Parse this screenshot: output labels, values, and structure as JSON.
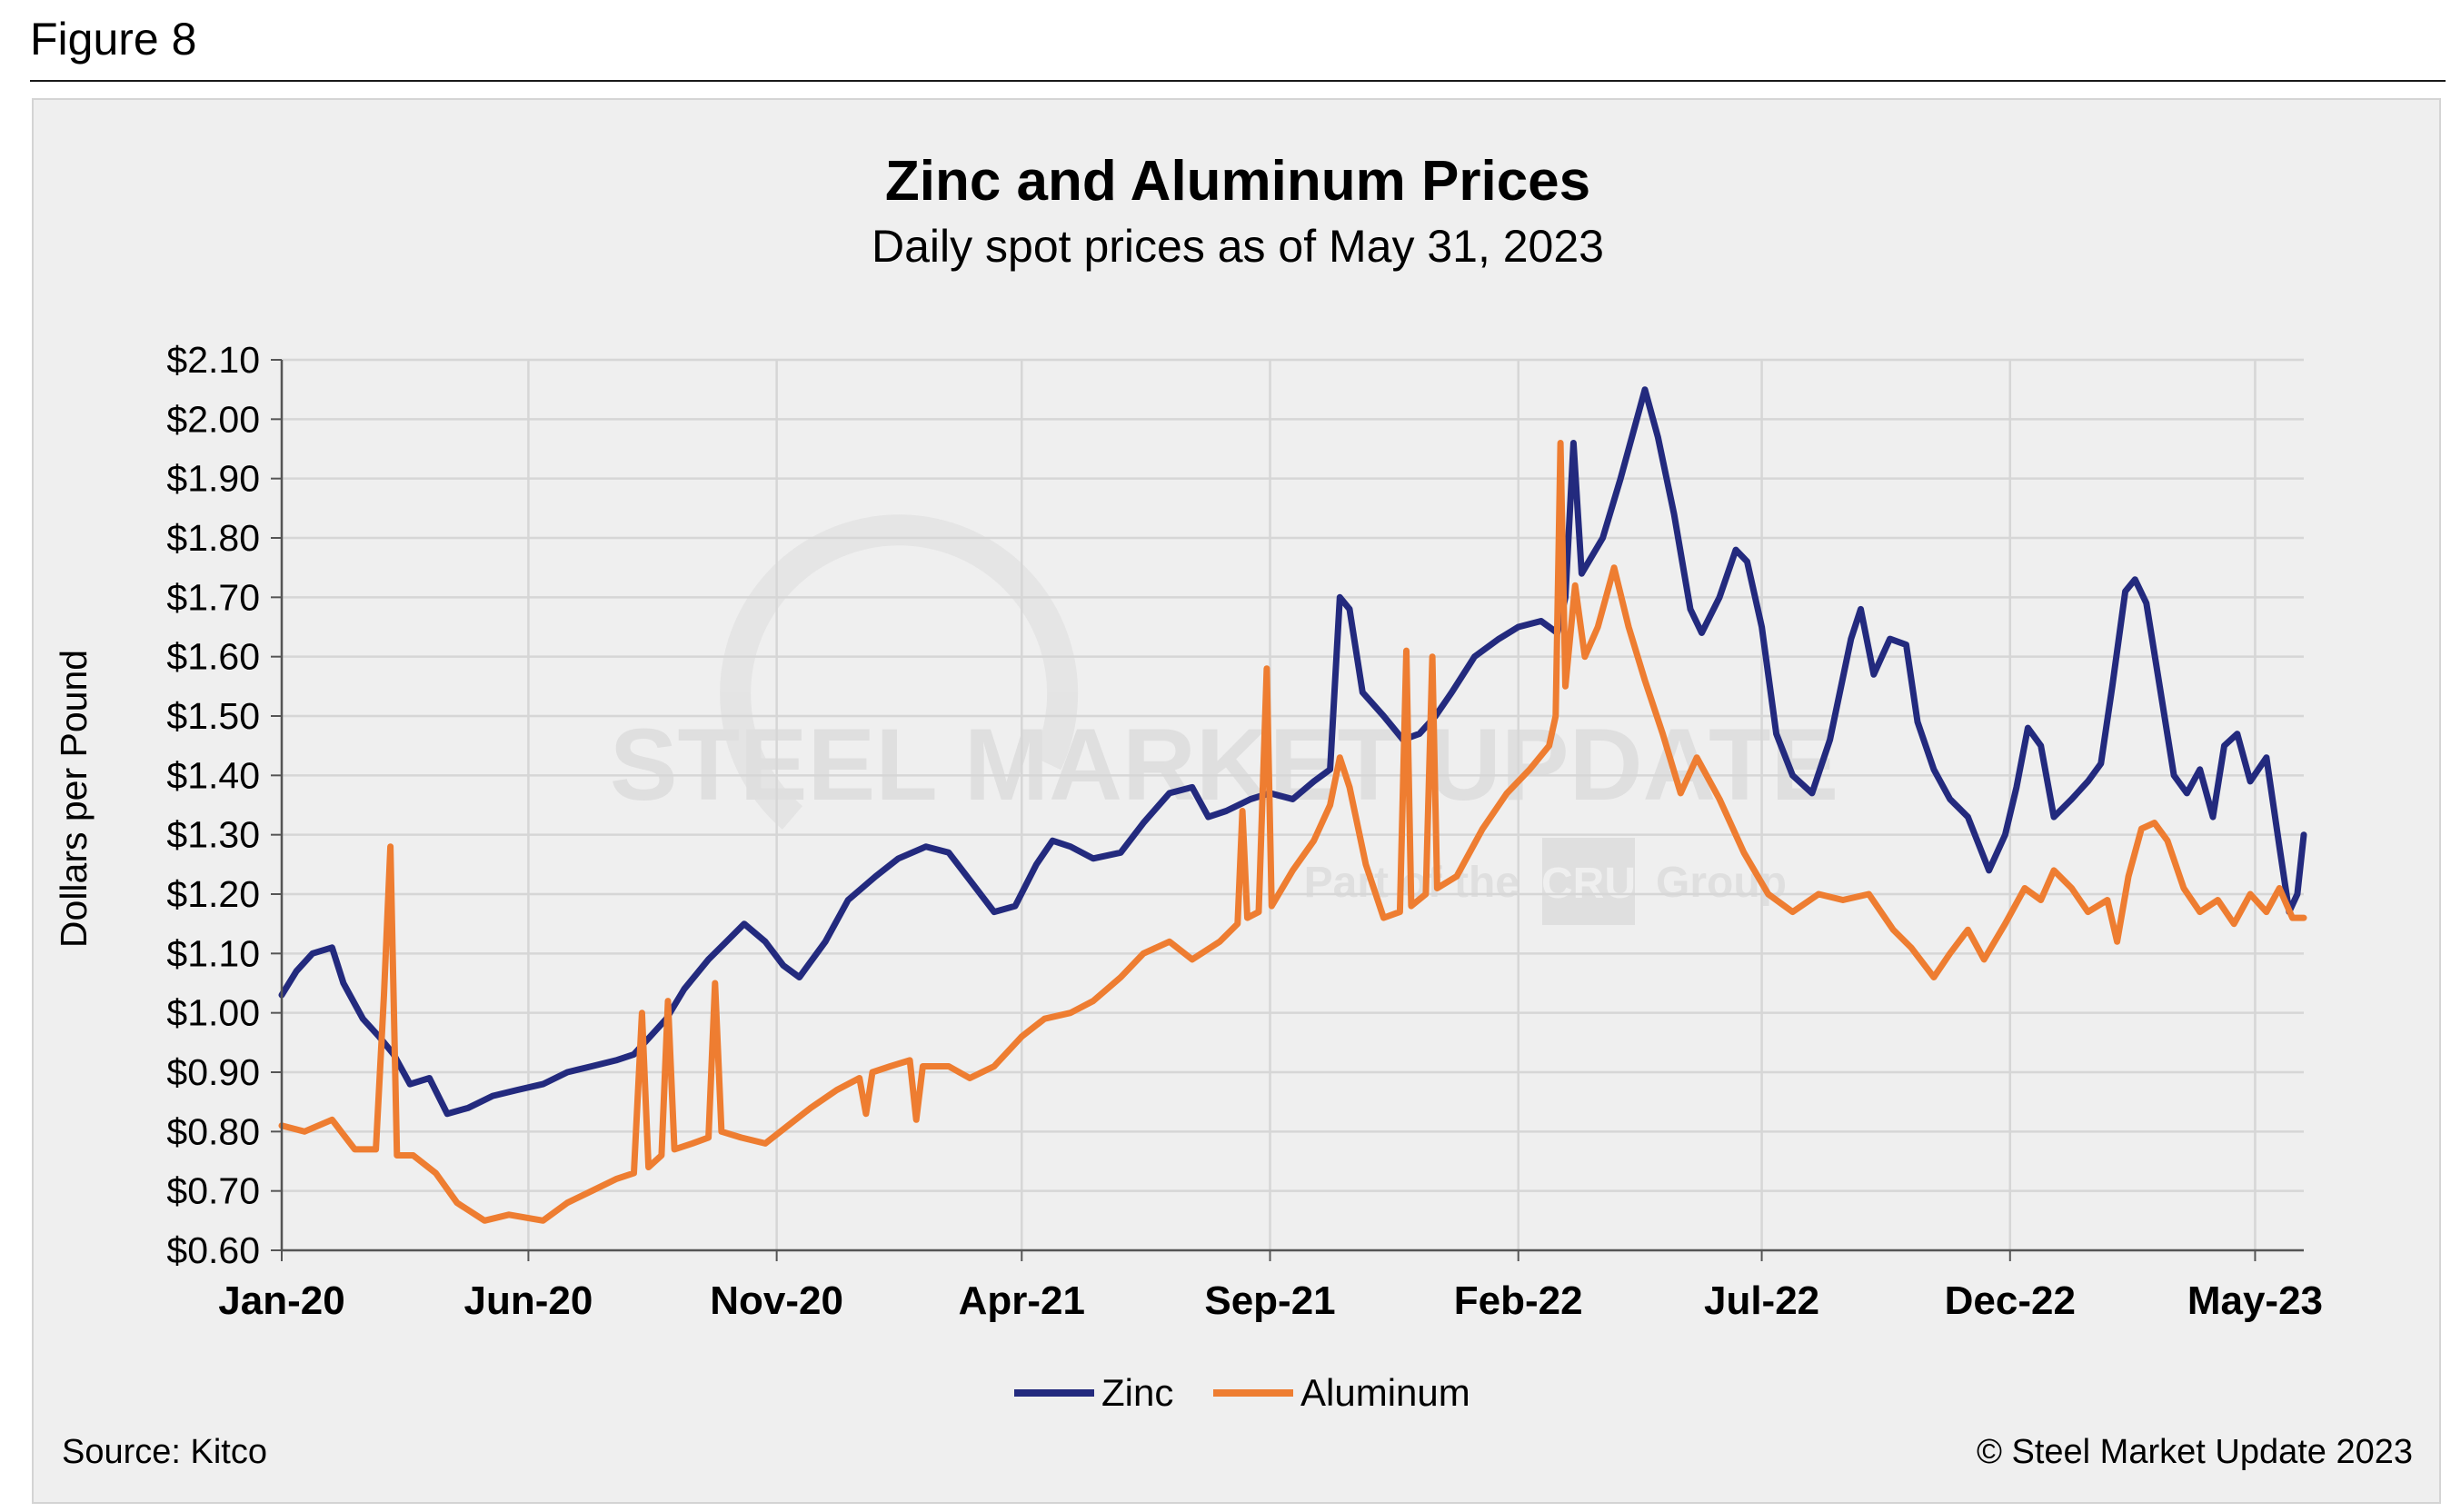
{
  "figure_label": "Figure 8",
  "source": "Source: Kitco",
  "copyright": "© Steel Market Update 2023",
  "watermark": {
    "main": "STEEL MARKET UPDATE",
    "sub_left": "Part of the",
    "sub_logo": "CRU",
    "sub_right": "Group"
  },
  "colors": {
    "zinc": "#232a7e",
    "aluminum": "#ee7d31",
    "grid": "#d6d6d6",
    "panel": "#efefef"
  },
  "chart_data": {
    "type": "line",
    "title": "Zinc and Aluminum Prices",
    "subtitle": "Daily spot prices as of May 31, 2023",
    "ylabel": "Dollars per Pound",
    "xlabel": "",
    "ylim": [
      0.6,
      2.1
    ],
    "xlim": [
      "2020-01-01",
      "2023-05-31"
    ],
    "yticks": [
      0.6,
      0.7,
      0.8,
      0.9,
      1.0,
      1.1,
      1.2,
      1.3,
      1.4,
      1.5,
      1.6,
      1.7,
      1.8,
      1.9,
      2.0,
      2.1
    ],
    "ytick_labels": [
      "$0.60",
      "$0.70",
      "$0.80",
      "$0.90",
      "$1.00",
      "$1.10",
      "$1.20",
      "$1.30",
      "$1.40",
      "$1.50",
      "$1.60",
      "$1.70",
      "$1.80",
      "$1.90",
      "$2.00",
      "$2.10"
    ],
    "xticks": [
      "2020-01-01",
      "2020-06-01",
      "2020-11-01",
      "2021-04-01",
      "2021-09-01",
      "2022-02-01",
      "2022-07-01",
      "2022-12-01",
      "2023-05-01"
    ],
    "xtick_labels": [
      "Jan-20",
      "Jun-20",
      "Nov-20",
      "Apr-21",
      "Sep-21",
      "Feb-22",
      "Jul-22",
      "Dec-22",
      "May-23"
    ],
    "grid": "vertical and horizontal",
    "legend": "bottom-center",
    "series": [
      {
        "name": "Zinc",
        "color": "#232a7e",
        "points": [
          [
            "2020-01-01",
            1.03
          ],
          [
            "2020-01-10",
            1.07
          ],
          [
            "2020-01-20",
            1.1
          ],
          [
            "2020-02-01",
            1.11
          ],
          [
            "2020-02-08",
            1.05
          ],
          [
            "2020-02-20",
            0.99
          ],
          [
            "2020-03-01",
            0.96
          ],
          [
            "2020-03-10",
            0.93
          ],
          [
            "2020-03-20",
            0.88
          ],
          [
            "2020-04-01",
            0.89
          ],
          [
            "2020-04-12",
            0.83
          ],
          [
            "2020-04-25",
            0.84
          ],
          [
            "2020-05-10",
            0.86
          ],
          [
            "2020-05-25",
            0.87
          ],
          [
            "2020-06-10",
            0.88
          ],
          [
            "2020-06-25",
            0.9
          ],
          [
            "2020-07-10",
            0.91
          ],
          [
            "2020-07-25",
            0.92
          ],
          [
            "2020-08-05",
            0.93
          ],
          [
            "2020-08-15",
            0.96
          ],
          [
            "2020-08-25",
            0.99
          ],
          [
            "2020-09-05",
            1.04
          ],
          [
            "2020-09-20",
            1.09
          ],
          [
            "2020-10-01",
            1.12
          ],
          [
            "2020-10-12",
            1.15
          ],
          [
            "2020-10-25",
            1.12
          ],
          [
            "2020-11-05",
            1.08
          ],
          [
            "2020-11-15",
            1.06
          ],
          [
            "2020-12-01",
            1.12
          ],
          [
            "2020-12-15",
            1.19
          ],
          [
            "2021-01-01",
            1.23
          ],
          [
            "2021-01-15",
            1.26
          ],
          [
            "2021-02-01",
            1.28
          ],
          [
            "2021-02-15",
            1.27
          ],
          [
            "2021-03-01",
            1.22
          ],
          [
            "2021-03-15",
            1.17
          ],
          [
            "2021-03-28",
            1.18
          ],
          [
            "2021-04-10",
            1.25
          ],
          [
            "2021-04-20",
            1.29
          ],
          [
            "2021-05-01",
            1.28
          ],
          [
            "2021-05-15",
            1.26
          ],
          [
            "2021-06-01",
            1.27
          ],
          [
            "2021-06-15",
            1.32
          ],
          [
            "2021-07-01",
            1.37
          ],
          [
            "2021-07-15",
            1.38
          ],
          [
            "2021-07-25",
            1.33
          ],
          [
            "2021-08-05",
            1.34
          ],
          [
            "2021-08-20",
            1.36
          ],
          [
            "2021-09-01",
            1.37
          ],
          [
            "2021-09-15",
            1.36
          ],
          [
            "2021-09-28",
            1.39
          ],
          [
            "2021-10-08",
            1.41
          ],
          [
            "2021-10-14",
            1.7
          ],
          [
            "2021-10-20",
            1.68
          ],
          [
            "2021-10-28",
            1.54
          ],
          [
            "2021-11-10",
            1.5
          ],
          [
            "2021-11-22",
            1.46
          ],
          [
            "2021-12-02",
            1.47
          ],
          [
            "2021-12-12",
            1.5
          ],
          [
            "2021-12-22",
            1.54
          ],
          [
            "2022-01-05",
            1.6
          ],
          [
            "2022-01-20",
            1.63
          ],
          [
            "2022-02-01",
            1.65
          ],
          [
            "2022-02-15",
            1.66
          ],
          [
            "2022-02-25",
            1.64
          ],
          [
            "2022-03-02",
            1.7
          ],
          [
            "2022-03-07",
            1.96
          ],
          [
            "2022-03-12",
            1.74
          ],
          [
            "2022-03-25",
            1.8
          ],
          [
            "2022-04-05",
            1.9
          ],
          [
            "2022-04-15",
            2.0
          ],
          [
            "2022-04-20",
            2.05
          ],
          [
            "2022-04-28",
            1.97
          ],
          [
            "2022-05-08",
            1.84
          ],
          [
            "2022-05-18",
            1.68
          ],
          [
            "2022-05-25",
            1.64
          ],
          [
            "2022-06-05",
            1.7
          ],
          [
            "2022-06-15",
            1.78
          ],
          [
            "2022-06-22",
            1.76
          ],
          [
            "2022-07-01",
            1.65
          ],
          [
            "2022-07-10",
            1.47
          ],
          [
            "2022-07-20",
            1.4
          ],
          [
            "2022-08-01",
            1.37
          ],
          [
            "2022-08-12",
            1.46
          ],
          [
            "2022-08-25",
            1.63
          ],
          [
            "2022-08-31",
            1.68
          ],
          [
            "2022-09-08",
            1.57
          ],
          [
            "2022-09-18",
            1.63
          ],
          [
            "2022-09-28",
            1.62
          ],
          [
            "2022-10-05",
            1.49
          ],
          [
            "2022-10-15",
            1.41
          ],
          [
            "2022-10-25",
            1.36
          ],
          [
            "2022-11-05",
            1.33
          ],
          [
            "2022-11-18",
            1.24
          ],
          [
            "2022-11-28",
            1.3
          ],
          [
            "2022-12-05",
            1.38
          ],
          [
            "2022-12-12",
            1.48
          ],
          [
            "2022-12-20",
            1.45
          ],
          [
            "2022-12-28",
            1.33
          ],
          [
            "2023-01-08",
            1.36
          ],
          [
            "2023-01-18",
            1.39
          ],
          [
            "2023-01-26",
            1.42
          ],
          [
            "2023-02-02",
            1.55
          ],
          [
            "2023-02-10",
            1.71
          ],
          [
            "2023-02-16",
            1.73
          ],
          [
            "2023-02-23",
            1.69
          ],
          [
            "2023-03-05",
            1.52
          ],
          [
            "2023-03-12",
            1.4
          ],
          [
            "2023-03-20",
            1.37
          ],
          [
            "2023-03-28",
            1.41
          ],
          [
            "2023-04-05",
            1.33
          ],
          [
            "2023-04-12",
            1.45
          ],
          [
            "2023-04-20",
            1.47
          ],
          [
            "2023-04-28",
            1.39
          ],
          [
            "2023-05-08",
            1.43
          ],
          [
            "2023-05-16",
            1.28
          ],
          [
            "2023-05-22",
            1.17
          ],
          [
            "2023-05-27",
            1.2
          ],
          [
            "2023-05-31",
            1.3
          ]
        ]
      },
      {
        "name": "Aluminum",
        "color": "#ee7d31",
        "points": [
          [
            "2020-01-01",
            0.81
          ],
          [
            "2020-01-15",
            0.8
          ],
          [
            "2020-02-01",
            0.82
          ],
          [
            "2020-02-15",
            0.77
          ],
          [
            "2020-02-28",
            0.77
          ],
          [
            "2020-03-04",
            1.03
          ],
          [
            "2020-03-08",
            1.28
          ],
          [
            "2020-03-12",
            0.76
          ],
          [
            "2020-03-22",
            0.76
          ],
          [
            "2020-04-05",
            0.73
          ],
          [
            "2020-04-18",
            0.68
          ],
          [
            "2020-05-05",
            0.65
          ],
          [
            "2020-05-20",
            0.66
          ],
          [
            "2020-06-10",
            0.65
          ],
          [
            "2020-06-25",
            0.68
          ],
          [
            "2020-07-10",
            0.7
          ],
          [
            "2020-07-25",
            0.72
          ],
          [
            "2020-08-05",
            0.73
          ],
          [
            "2020-08-10",
            1.0
          ],
          [
            "2020-08-14",
            0.74
          ],
          [
            "2020-08-22",
            0.76
          ],
          [
            "2020-08-26",
            1.02
          ],
          [
            "2020-08-30",
            0.77
          ],
          [
            "2020-09-10",
            0.78
          ],
          [
            "2020-09-20",
            0.79
          ],
          [
            "2020-09-24",
            1.05
          ],
          [
            "2020-09-28",
            0.8
          ],
          [
            "2020-10-10",
            0.79
          ],
          [
            "2020-10-25",
            0.78
          ],
          [
            "2020-11-08",
            0.81
          ],
          [
            "2020-11-22",
            0.84
          ],
          [
            "2020-12-08",
            0.87
          ],
          [
            "2020-12-22",
            0.89
          ],
          [
            "2020-12-26",
            0.83
          ],
          [
            "2020-12-30",
            0.9
          ],
          [
            "2021-01-10",
            0.91
          ],
          [
            "2021-01-22",
            0.92
          ],
          [
            "2021-01-26",
            0.82
          ],
          [
            "2021-01-30",
            0.91
          ],
          [
            "2021-02-15",
            0.91
          ],
          [
            "2021-02-28",
            0.89
          ],
          [
            "2021-03-15",
            0.91
          ],
          [
            "2021-04-01",
            0.96
          ],
          [
            "2021-04-15",
            0.99
          ],
          [
            "2021-05-01",
            1.0
          ],
          [
            "2021-05-15",
            1.02
          ],
          [
            "2021-06-01",
            1.06
          ],
          [
            "2021-06-15",
            1.1
          ],
          [
            "2021-07-01",
            1.12
          ],
          [
            "2021-07-15",
            1.09
          ],
          [
            "2021-08-01",
            1.12
          ],
          [
            "2021-08-12",
            1.15
          ],
          [
            "2021-08-15",
            1.34
          ],
          [
            "2021-08-18",
            1.16
          ],
          [
            "2021-08-25",
            1.17
          ],
          [
            "2021-08-30",
            1.58
          ],
          [
            "2021-09-02",
            1.18
          ],
          [
            "2021-09-15",
            1.24
          ],
          [
            "2021-09-28",
            1.29
          ],
          [
            "2021-10-08",
            1.35
          ],
          [
            "2021-10-14",
            1.43
          ],
          [
            "2021-10-20",
            1.38
          ],
          [
            "2021-10-30",
            1.25
          ],
          [
            "2021-11-10",
            1.16
          ],
          [
            "2021-11-20",
            1.17
          ],
          [
            "2021-11-24",
            1.61
          ],
          [
            "2021-11-27",
            1.18
          ],
          [
            "2021-12-06",
            1.2
          ],
          [
            "2021-12-10",
            1.6
          ],
          [
            "2021-12-13",
            1.21
          ],
          [
            "2021-12-25",
            1.23
          ],
          [
            "2022-01-10",
            1.31
          ],
          [
            "2022-01-25",
            1.37
          ],
          [
            "2022-02-08",
            1.41
          ],
          [
            "2022-02-20",
            1.45
          ],
          [
            "2022-02-24",
            1.5
          ],
          [
            "2022-02-27",
            1.96
          ],
          [
            "2022-03-02",
            1.55
          ],
          [
            "2022-03-08",
            1.72
          ],
          [
            "2022-03-14",
            1.6
          ],
          [
            "2022-03-22",
            1.65
          ],
          [
            "2022-04-01",
            1.75
          ],
          [
            "2022-04-10",
            1.65
          ],
          [
            "2022-04-20",
            1.56
          ],
          [
            "2022-05-01",
            1.47
          ],
          [
            "2022-05-12",
            1.37
          ],
          [
            "2022-05-22",
            1.43
          ],
          [
            "2022-06-05",
            1.36
          ],
          [
            "2022-06-20",
            1.27
          ],
          [
            "2022-07-05",
            1.2
          ],
          [
            "2022-07-20",
            1.17
          ],
          [
            "2022-08-05",
            1.2
          ],
          [
            "2022-08-20",
            1.19
          ],
          [
            "2022-09-05",
            1.2
          ],
          [
            "2022-09-20",
            1.14
          ],
          [
            "2022-10-01",
            1.11
          ],
          [
            "2022-10-15",
            1.06
          ],
          [
            "2022-10-25",
            1.1
          ],
          [
            "2022-11-05",
            1.14
          ],
          [
            "2022-11-15",
            1.09
          ],
          [
            "2022-11-28",
            1.15
          ],
          [
            "2022-12-10",
            1.21
          ],
          [
            "2022-12-20",
            1.19
          ],
          [
            "2022-12-28",
            1.24
          ],
          [
            "2023-01-08",
            1.21
          ],
          [
            "2023-01-18",
            1.17
          ],
          [
            "2023-01-30",
            1.19
          ],
          [
            "2023-02-05",
            1.12
          ],
          [
            "2023-02-12",
            1.23
          ],
          [
            "2023-02-20",
            1.31
          ],
          [
            "2023-02-28",
            1.32
          ],
          [
            "2023-03-08",
            1.29
          ],
          [
            "2023-03-18",
            1.21
          ],
          [
            "2023-03-28",
            1.17
          ],
          [
            "2023-04-08",
            1.19
          ],
          [
            "2023-04-18",
            1.15
          ],
          [
            "2023-04-28",
            1.2
          ],
          [
            "2023-05-08",
            1.17
          ],
          [
            "2023-05-16",
            1.21
          ],
          [
            "2023-05-24",
            1.16
          ],
          [
            "2023-05-31",
            1.16
          ]
        ]
      }
    ]
  }
}
